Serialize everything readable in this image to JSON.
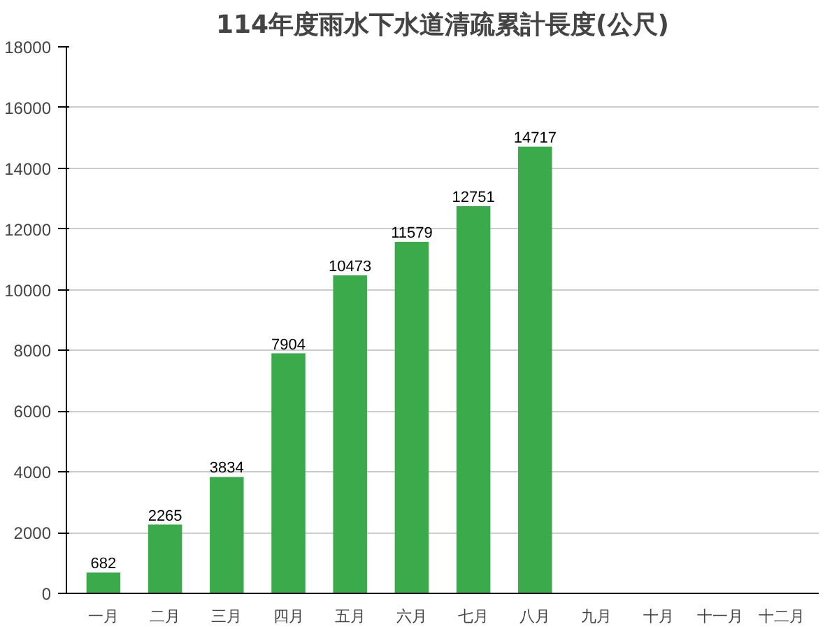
{
  "chart_data": {
    "type": "bar",
    "title": "114年度雨水下水道清疏累計長度(公尺)",
    "categories": [
      "一月",
      "二月",
      "三月",
      "四月",
      "五月",
      "六月",
      "七月",
      "八月",
      "九月",
      "十月",
      "十一月",
      "十二月"
    ],
    "values": [
      682,
      2265,
      3834,
      7904,
      10473,
      11579,
      12751,
      14717,
      null,
      null,
      null,
      null
    ],
    "color": "#3aaa4a",
    "data_labels": true,
    "grid": "y",
    "ylim": [
      0,
      18000
    ],
    "yticks": [
      0,
      2000,
      4000,
      6000,
      8000,
      10000,
      12000,
      14000,
      16000,
      18000
    ]
  }
}
